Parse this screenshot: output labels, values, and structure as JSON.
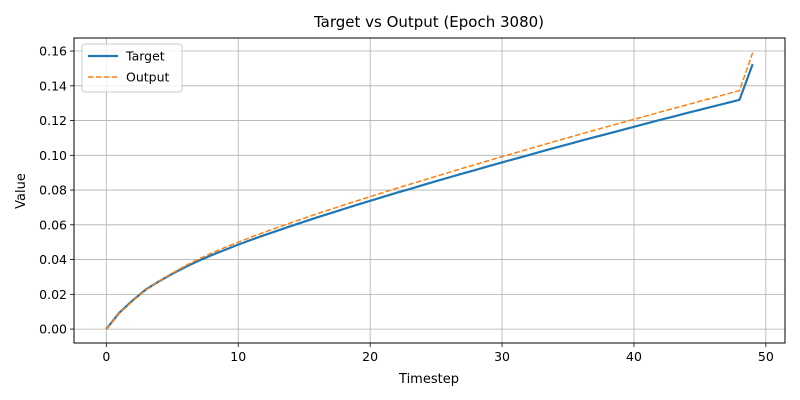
{
  "chart_data": {
    "type": "line",
    "title": "Target vs Output (Epoch 3080)",
    "xlabel": "Timestep",
    "ylabel": "Value",
    "xlim": [
      -2.45,
      51.45
    ],
    "ylim": [
      -0.008,
      0.1675
    ],
    "xticks": [
      0,
      10,
      20,
      30,
      40,
      50
    ],
    "yticks": [
      0.0,
      0.02,
      0.04,
      0.06,
      0.08,
      0.1,
      0.12,
      0.14,
      0.16
    ],
    "xtick_labels": [
      "0",
      "10",
      "20",
      "30",
      "40",
      "50"
    ],
    "ytick_labels": [
      "0.00",
      "0.02",
      "0.04",
      "0.06",
      "0.08",
      "0.10",
      "0.12",
      "0.14",
      "0.16"
    ],
    "grid": true,
    "legend_position": "upper-left",
    "x": [
      0,
      1,
      2,
      3,
      4,
      5,
      6,
      7,
      8,
      9,
      10,
      11,
      12,
      13,
      14,
      15,
      16,
      17,
      18,
      19,
      20,
      21,
      22,
      23,
      24,
      25,
      26,
      27,
      28,
      29,
      30,
      31,
      32,
      33,
      34,
      35,
      36,
      37,
      38,
      39,
      40,
      41,
      42,
      43,
      44,
      45,
      46,
      47,
      48,
      49
    ],
    "series": [
      {
        "name": "Target",
        "color": "#1f77b4",
        "style": "solid",
        "values": [
          0.0,
          0.0095,
          0.0165,
          0.0228,
          0.0275,
          0.0318,
          0.0357,
          0.0393,
          0.0426,
          0.0456,
          0.0486,
          0.0514,
          0.0541,
          0.0567,
          0.0593,
          0.0618,
          0.0643,
          0.0667,
          0.0691,
          0.0715,
          0.0738,
          0.0761,
          0.0784,
          0.0806,
          0.0829,
          0.0851,
          0.0873,
          0.0895,
          0.0916,
          0.0938,
          0.0959,
          0.098,
          0.1001,
          0.1022,
          0.1043,
          0.1063,
          0.1084,
          0.1104,
          0.1124,
          0.1144,
          0.1164,
          0.1184,
          0.1204,
          0.1223,
          0.1243,
          0.1262,
          0.1281,
          0.13,
          0.1319,
          0.1525
        ]
      },
      {
        "name": "Output",
        "color": "#ff7f0e",
        "style": "dashed",
        "values": [
          0.0,
          0.0092,
          0.0162,
          0.0225,
          0.0276,
          0.0322,
          0.0365,
          0.0403,
          0.0438,
          0.047,
          0.05,
          0.053,
          0.0558,
          0.0585,
          0.0612,
          0.0638,
          0.0664,
          0.0689,
          0.0714,
          0.0738,
          0.0762,
          0.0786,
          0.081,
          0.0833,
          0.0856,
          0.0879,
          0.0902,
          0.0925,
          0.0947,
          0.097,
          0.0992,
          0.1014,
          0.1036,
          0.1058,
          0.108,
          0.1101,
          0.1123,
          0.1144,
          0.1165,
          0.1186,
          0.1207,
          0.1228,
          0.1249,
          0.127,
          0.129,
          0.1311,
          0.1331,
          0.1352,
          0.1372,
          0.159
        ]
      }
    ]
  }
}
